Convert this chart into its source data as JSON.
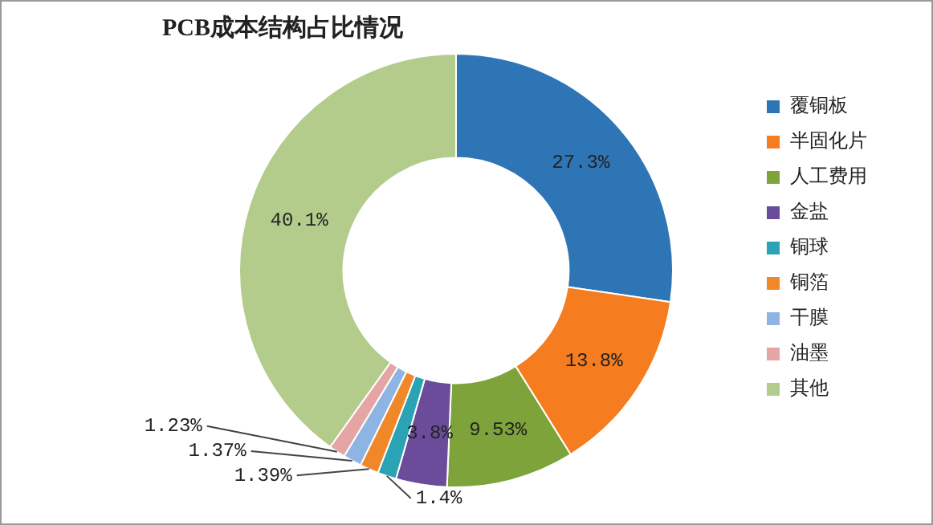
{
  "chart_data": {
    "type": "donut",
    "title": "PCB成本结构占比情况",
    "categories": [
      "覆铜板",
      "半固化片",
      "人工费用",
      "金盐",
      "铜球",
      "铜箔",
      "干膜",
      "油墨",
      "其他"
    ],
    "values": [
      27.3,
      13.8,
      9.53,
      3.8,
      1.4,
      1.39,
      1.37,
      1.23,
      40.1
    ],
    "value_labels": [
      "27.3%",
      "13.8%",
      "9.53%",
      "3.8%",
      "1.4%",
      "1.39%",
      "1.37%",
      "1.23%",
      "40.1%"
    ],
    "colors": [
      "#2e75b6",
      "#f57c1f",
      "#7ea33a",
      "#6b4c9a",
      "#2aa3b5",
      "#f0882a",
      "#8eb4e3",
      "#e6a5a5",
      "#b3cc8b"
    ],
    "legend": "right"
  }
}
